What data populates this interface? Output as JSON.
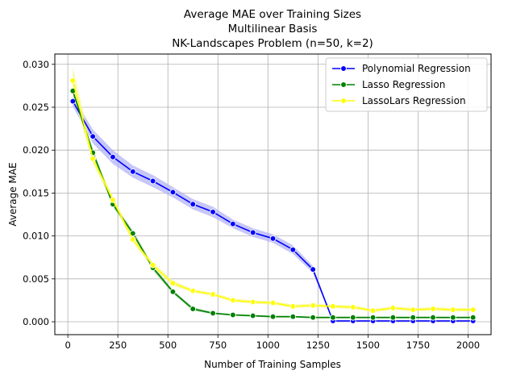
{
  "chart_data": {
    "type": "line",
    "title_lines": [
      "Average MAE over Training Sizes",
      "Multilinear Basis",
      "NK-Landscapes Problem (n=50, k=2)"
    ],
    "xlabel": "Number of Training Samples",
    "ylabel": "Average MAE",
    "xlim": [
      -65,
      2115
    ],
    "ylim": [
      -0.0015,
      0.0312
    ],
    "xticks": [
      0,
      250,
      500,
      750,
      1000,
      1250,
      1500,
      1750,
      2000
    ],
    "xtick_labels": [
      "0",
      "250",
      "500",
      "750",
      "1000",
      "1250",
      "1500",
      "1750",
      "2000"
    ],
    "yticks": [
      0.0,
      0.005,
      0.01,
      0.015,
      0.02,
      0.025,
      0.03
    ],
    "ytick_labels": [
      "0.000",
      "0.005",
      "0.010",
      "0.015",
      "0.020",
      "0.025",
      "0.030"
    ],
    "grid": true,
    "legend_position": "top-right",
    "x": [
      25,
      125,
      225,
      325,
      425,
      525,
      625,
      725,
      825,
      925,
      1025,
      1125,
      1225,
      1325,
      1425,
      1525,
      1625,
      1725,
      1825,
      1925,
      2025
    ],
    "series": [
      {
        "name": "Polynomial Regression",
        "color": "#0000ff",
        "band_color": "#b3b3f5",
        "values": [
          0.0257,
          0.0216,
          0.0192,
          0.0175,
          0.0164,
          0.0151,
          0.0137,
          0.0128,
          0.0114,
          0.0104,
          0.0097,
          0.0084,
          0.0061,
          0.0001,
          0.0001,
          0.0001,
          0.0001,
          0.0001,
          0.0001,
          0.0001,
          0.0001
        ],
        "band": [
          0.0006,
          0.0008,
          0.0008,
          0.0007,
          0.0007,
          0.0006,
          0.0006,
          0.0006,
          0.0005,
          0.0005,
          0.0005,
          0.0005,
          0.0004,
          0.0001,
          0.0001,
          0.0001,
          0.0001,
          0.0001,
          0.0001,
          0.0001,
          0.0001
        ]
      },
      {
        "name": "Lasso Regression",
        "color": "#008000",
        "band_color": "#8fc98f",
        "values": [
          0.0269,
          0.0197,
          0.0137,
          0.0103,
          0.0063,
          0.0035,
          0.0015,
          0.001,
          0.0008,
          0.0007,
          0.0006,
          0.0006,
          0.0005,
          0.0005,
          0.0005,
          0.0005,
          0.0005,
          0.0005,
          0.0005,
          0.0005,
          0.0005
        ],
        "band": [
          0.0004,
          0.0004,
          0.0003,
          0.0003,
          0.0003,
          0.0002,
          0.0002,
          0.0001,
          0.0001,
          0.0001,
          0.0001,
          0.0001,
          0.0001,
          0.0001,
          0.0001,
          0.0001,
          0.0001,
          0.0001,
          0.0001,
          0.0001,
          0.0001
        ]
      },
      {
        "name": "LassoLars Regression",
        "color": "#ffff00",
        "band_color": "#f5f5a0",
        "values": [
          0.0281,
          0.019,
          0.0142,
          0.0096,
          0.0066,
          0.0045,
          0.0036,
          0.0032,
          0.0025,
          0.0023,
          0.0022,
          0.0018,
          0.0019,
          0.0018,
          0.0017,
          0.0013,
          0.0016,
          0.0014,
          0.0015,
          0.0014,
          0.0014
        ],
        "band": [
          0.0016,
          0.0006,
          0.0004,
          0.0004,
          0.0003,
          0.0003,
          0.0002,
          0.0002,
          0.0002,
          0.0002,
          0.0002,
          0.0002,
          0.0002,
          0.0002,
          0.0002,
          0.0002,
          0.0002,
          0.0002,
          0.0002,
          0.0002,
          0.0002
        ]
      }
    ]
  }
}
